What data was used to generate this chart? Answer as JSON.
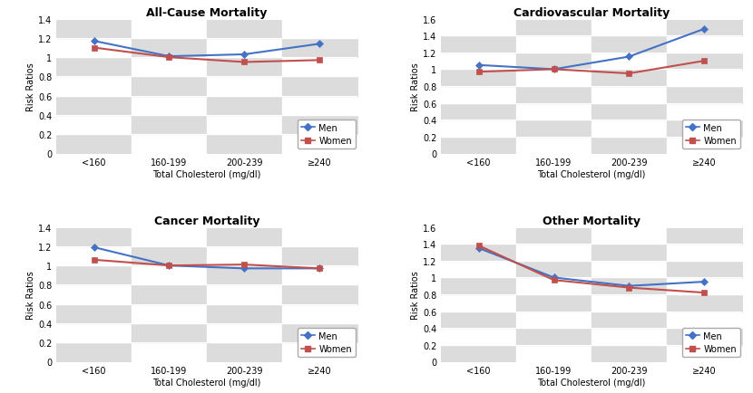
{
  "charts": [
    {
      "title": "All-Cause Mortality",
      "ylim": [
        0,
        1.4
      ],
      "yticks": [
        0,
        0.2,
        0.4,
        0.6,
        0.8,
        1.0,
        1.2,
        1.4
      ],
      "men_values": [
        1.17,
        1.01,
        1.03,
        1.14
      ],
      "women_values": [
        1.1,
        1.0,
        0.95,
        0.97
      ]
    },
    {
      "title": "Cardiovascular Mortality",
      "ylim": [
        0,
        1.6
      ],
      "yticks": [
        0,
        0.2,
        0.4,
        0.6,
        0.8,
        1.0,
        1.2,
        1.4,
        1.6
      ],
      "men_values": [
        1.05,
        1.0,
        1.15,
        1.48
      ],
      "women_values": [
        0.97,
        1.0,
        0.95,
        1.1
      ]
    },
    {
      "title": "Cancer Mortality",
      "ylim": [
        0,
        1.4
      ],
      "yticks": [
        0,
        0.2,
        0.4,
        0.6,
        0.8,
        1.0,
        1.2,
        1.4
      ],
      "men_values": [
        1.19,
        1.0,
        0.97,
        0.97
      ],
      "women_values": [
        1.06,
        1.0,
        1.01,
        0.97
      ]
    },
    {
      "title": "Other Mortality",
      "ylim": [
        0,
        1.6
      ],
      "yticks": [
        0,
        0.2,
        0.4,
        0.6,
        0.8,
        1.0,
        1.2,
        1.4,
        1.6
      ],
      "men_values": [
        1.35,
        1.0,
        0.9,
        0.95
      ],
      "women_values": [
        1.38,
        0.97,
        0.88,
        0.82
      ]
    }
  ],
  "x_labels": [
    "<160",
    "160-199",
    "200-239",
    "≥240"
  ],
  "xlabel": "Total Cholesterol (mg/dl)",
  "ylabel": "Risk Ratios",
  "men_color": "#4472C4",
  "women_color": "#C0504D",
  "bg_light": "#DCDCDC",
  "bg_white": "#FFFFFF",
  "marker_men": "D",
  "marker_women": "s",
  "linewidth": 1.5,
  "markersize": 4,
  "title_fontsize": 9,
  "tick_fontsize": 7,
  "label_fontsize": 7,
  "legend_fontsize": 7
}
